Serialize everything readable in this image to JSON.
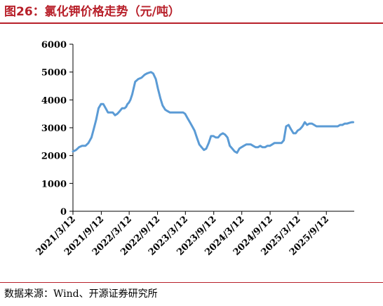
{
  "title": "图26：氯化钾价格走势（元/吨）",
  "source": "数据来源：Wind、开源证券研究所",
  "colors": {
    "accent": "#b8202a",
    "series": "#5b9bd5",
    "axis": "#000000"
  },
  "chart_data": {
    "type": "line",
    "title": "图26：氯化钾价格走势（元/吨）",
    "xlabel": "",
    "ylabel": "",
    "ylim": [
      0,
      6000
    ],
    "yticks": [
      0,
      1000,
      2000,
      3000,
      4000,
      5000,
      6000
    ],
    "xrange": [
      "2021-03-12",
      "2026-03-12"
    ],
    "xticks": [
      "2021/3/12",
      "2021/9/12",
      "2022/3/12",
      "2022/9/12",
      "2023/3/12",
      "2023/9/12",
      "2024/3/12",
      "2024/9/12",
      "2025/3/12",
      "2025/9/12"
    ],
    "grid": false,
    "legend": "none",
    "series": [
      {
        "x": [
          "2021-03-12",
          "2021-04-01",
          "2021-04-20",
          "2021-05-10",
          "2021-06-01",
          "2021-06-20",
          "2021-07-10",
          "2021-07-25",
          "2021-08-10",
          "2021-08-25",
          "2021-09-10",
          "2021-09-25",
          "2021-10-10",
          "2021-10-25",
          "2021-11-10",
          "2021-11-25",
          "2021-12-10",
          "2021-12-25",
          "2022-01-10",
          "2022-01-25",
          "2022-02-10",
          "2022-02-20",
          "2022-03-01",
          "2022-03-10",
          "2022-03-20",
          "2022-04-01",
          "2022-04-20",
          "2022-05-10",
          "2022-06-01",
          "2022-06-20",
          "2022-07-05",
          "2022-07-20",
          "2022-08-01",
          "2022-08-15",
          "2022-09-01",
          "2022-09-15",
          "2022-10-01",
          "2022-10-15",
          "2022-11-01",
          "2022-11-15",
          "2022-12-01",
          "2022-12-15",
          "2023-01-01",
          "2023-01-20",
          "2023-02-10",
          "2023-02-25",
          "2023-03-10",
          "2023-03-25",
          "2023-04-10",
          "2023-04-25",
          "2023-05-10",
          "2023-05-25",
          "2023-06-10",
          "2023-06-25",
          "2023-07-10",
          "2023-07-25",
          "2023-08-10",
          "2023-08-25",
          "2023-09-10",
          "2023-09-25",
          "2023-10-10",
          "2023-10-25",
          "2023-11-10",
          "2023-11-25",
          "2023-12-10",
          "2023-12-25",
          "2024-01-10",
          "2024-01-25",
          "2024-02-10",
          "2024-02-25",
          "2024-03-10",
          "2024-03-25",
          "2024-04-10",
          "2024-04-25",
          "2024-05-10",
          "2024-05-25",
          "2024-06-10",
          "2024-06-25",
          "2024-07-10",
          "2024-07-25",
          "2024-08-10",
          "2024-08-25",
          "2024-09-10",
          "2024-09-25",
          "2024-10-10",
          "2024-10-25",
          "2024-11-10",
          "2024-11-25",
          "2024-12-10",
          "2024-12-25",
          "2025-01-10",
          "2025-01-25",
          "2025-02-10",
          "2025-02-25",
          "2025-03-10",
          "2025-03-25",
          "2025-04-10",
          "2025-04-25",
          "2025-05-10",
          "2025-05-25",
          "2025-06-10",
          "2025-06-25",
          "2025-07-10",
          "2025-07-25",
          "2025-08-10",
          "2025-08-25",
          "2025-09-10",
          "2025-09-25",
          "2025-10-10",
          "2025-10-25",
          "2025-11-10",
          "2025-11-25",
          "2025-12-10",
          "2025-12-25",
          "2026-01-10",
          "2026-01-25",
          "2026-02-10",
          "2026-02-25",
          "2026-03-05"
        ],
        "y": [
          2150,
          2200,
          2300,
          2350,
          2350,
          2450,
          2650,
          2950,
          3300,
          3700,
          3850,
          3850,
          3700,
          3550,
          3550,
          3550,
          3450,
          3500,
          3600,
          3700,
          3700,
          3750,
          3850,
          3900,
          4000,
          4200,
          4650,
          4750,
          4800,
          4900,
          4950,
          4980,
          5000,
          4950,
          4750,
          4400,
          4050,
          3800,
          3650,
          3600,
          3550,
          3550,
          3550,
          3550,
          3550,
          3550,
          3500,
          3350,
          3200,
          3050,
          2900,
          2650,
          2400,
          2300,
          2200,
          2250,
          2450,
          2700,
          2700,
          2650,
          2650,
          2750,
          2800,
          2750,
          2650,
          2350,
          2250,
          2150,
          2100,
          2250,
          2300,
          2350,
          2400,
          2400,
          2400,
          2350,
          2300,
          2300,
          2350,
          2300,
          2300,
          2350,
          2350,
          2400,
          2450,
          2450,
          2450,
          2450,
          2550,
          3050,
          3100,
          2950,
          2800,
          2800,
          2900,
          2950,
          3050,
          3200,
          3100,
          3150,
          3150,
          3100,
          3050,
          3050,
          3050,
          3050,
          3050,
          3050,
          3050,
          3050,
          3050,
          3050,
          3100,
          3100,
          3150,
          3150,
          3180,
          3200,
          3200
        ]
      }
    ]
  }
}
